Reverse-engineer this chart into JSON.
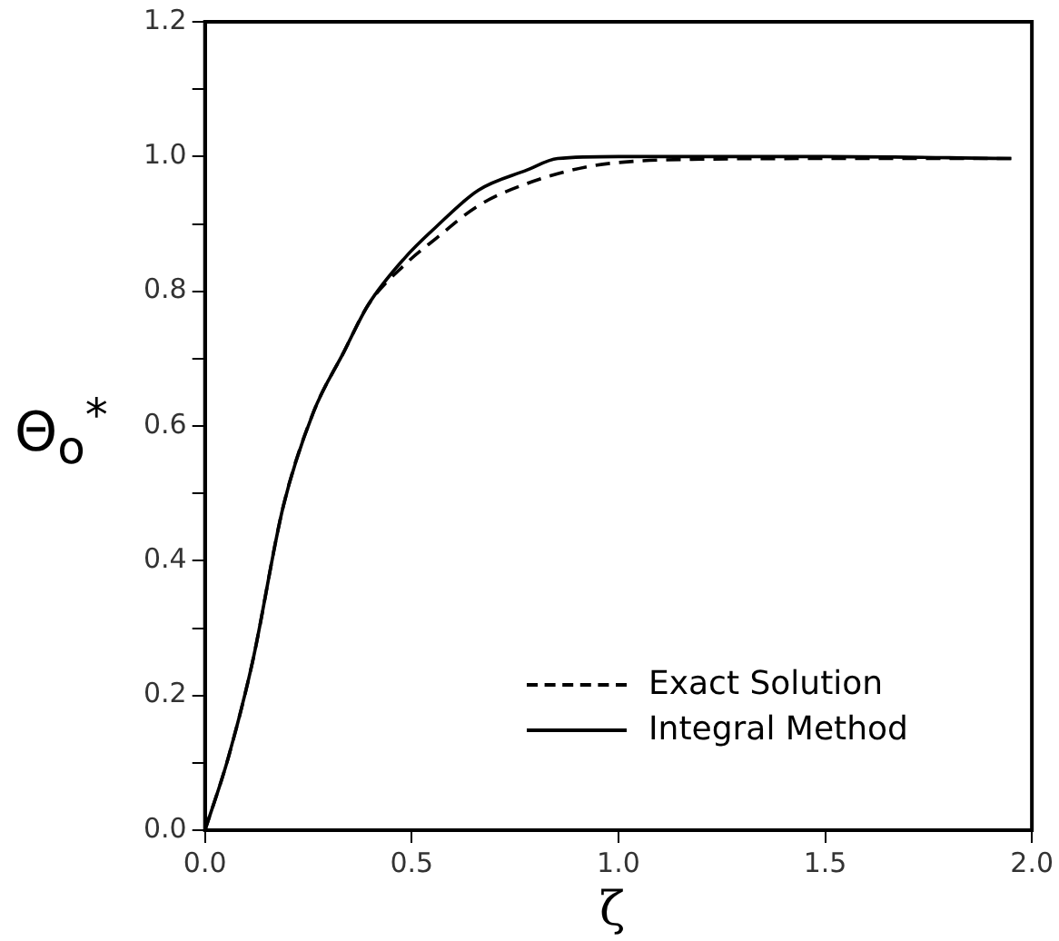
{
  "chart_data": {
    "type": "line",
    "xlabel": "ζ",
    "ylabel": "Θ$_{o}$$^{*}$",
    "xlim": [
      0,
      2
    ],
    "xticks": [
      {
        "value": 0,
        "label": "0.0"
      },
      {
        "value": 0.5,
        "label": "0.5"
      },
      {
        "value": 1,
        "label": "1.0"
      },
      {
        "value": 1.5,
        "label": "1.5"
      },
      {
        "value": 2,
        "label": "2.0"
      }
    ],
    "ylim": [
      0,
      1.2
    ],
    "yticks": [
      {
        "value": 0,
        "label": "0.0"
      },
      {
        "value": 0.1,
        "label": null
      },
      {
        "value": 0.2,
        "label": "0.2"
      },
      {
        "value": 0.3,
        "label": null
      },
      {
        "value": 0.4,
        "label": "0.4"
      },
      {
        "value": 0.5,
        "label": null
      },
      {
        "value": 0.6,
        "label": "0.6"
      },
      {
        "value": 0.7,
        "label": null
      },
      {
        "value": 0.8,
        "label": "0.8"
      },
      {
        "value": 0.9,
        "label": null
      },
      {
        "value": 1,
        "label": "1.0"
      },
      {
        "value": 1.1,
        "label": null
      },
      {
        "value": 1.2,
        "label": "1.2"
      }
    ],
    "grid": false,
    "legend": "bottom right",
    "marker": "none",
    "series": [
      {
        "name": "Exact Solution",
        "color": "#000000",
        "line_style": "dashed",
        "x": [
          0,
          0.056,
          0.115,
          0.189,
          0.262,
          0.336,
          0.395,
          0.484,
          0.558,
          0.661,
          0.779,
          0.926,
          1.04,
          1.2,
          1.5,
          1.95
        ],
        "values": [
          0,
          0.107,
          0.25,
          0.48,
          0.62,
          0.71,
          0.78,
          0.84,
          0.878,
          0.927,
          0.96,
          0.985,
          0.993,
          0.996,
          0.997,
          0.997
        ]
      },
      {
        "name": "Integral Method",
        "color": "#000000",
        "line_style": "solid",
        "x": [
          0,
          0.056,
          0.115,
          0.189,
          0.262,
          0.336,
          0.395,
          0.484,
          0.558,
          0.661,
          0.779,
          0.853,
          1.0,
          1.5,
          1.95
        ],
        "values": [
          0,
          0.107,
          0.25,
          0.48,
          0.62,
          0.71,
          0.78,
          0.85,
          0.895,
          0.95,
          0.98,
          0.997,
          1.0,
          1.0,
          0.997
        ]
      }
    ]
  }
}
